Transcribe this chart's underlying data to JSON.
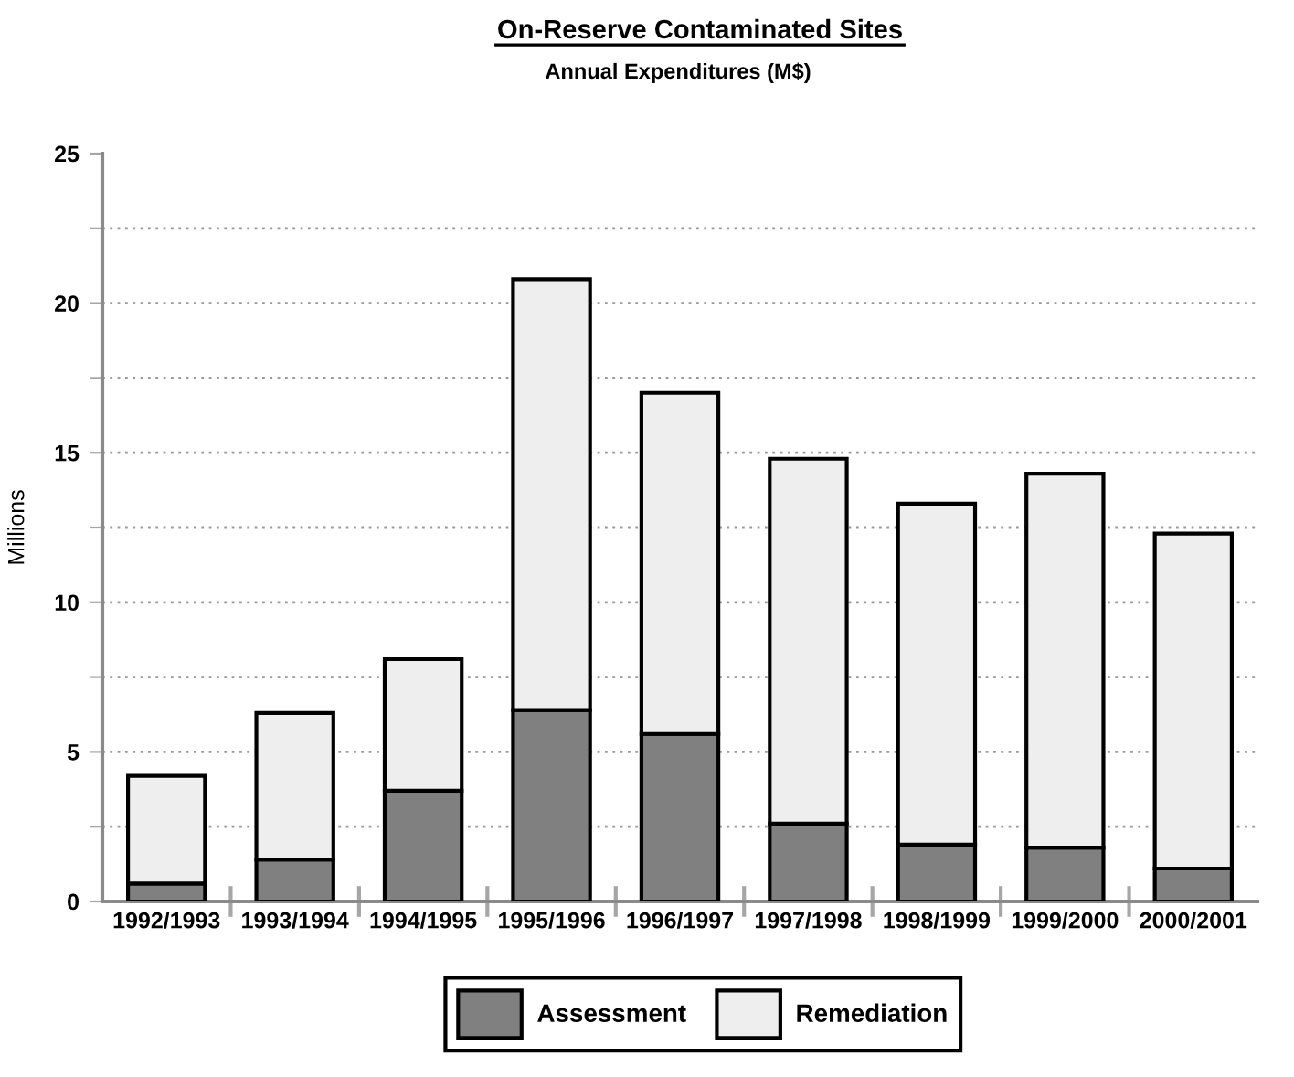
{
  "chart_data": {
    "type": "bar",
    "title": "On-Reserve Contaminated Sites",
    "subtitle": "Annual Expenditures (M$)",
    "ylabel": "Millions",
    "categories": [
      "1992/1993",
      "1993/1994",
      "1994/1995",
      "1995/1996",
      "1996/1997",
      "1997/1998",
      "1998/1999",
      "1999/2000",
      "2000/2001"
    ],
    "stacked": true,
    "series": [
      {
        "name": "Assessment",
        "color": "#808080",
        "values": [
          0.6,
          1.4,
          3.7,
          6.4,
          5.6,
          2.6,
          1.9,
          1.8,
          1.1
        ]
      },
      {
        "name": "Remediation",
        "color": "#eeeeee",
        "values": [
          3.6,
          4.9,
          4.4,
          14.4,
          11.4,
          12.2,
          11.4,
          12.5,
          11.2
        ]
      }
    ],
    "ylim": [
      0,
      25
    ],
    "yticks": [
      0,
      {
        "value": 2.5,
        "label": null
      },
      5,
      {
        "value": 7.5,
        "label": null
      },
      10,
      {
        "value": 12.5,
        "label": null
      },
      15,
      {
        "value": 17.5,
        "label": null
      },
      20,
      {
        "value": 22.5,
        "label": null
      },
      25
    ],
    "grid": "y",
    "legend": "bottom"
  }
}
